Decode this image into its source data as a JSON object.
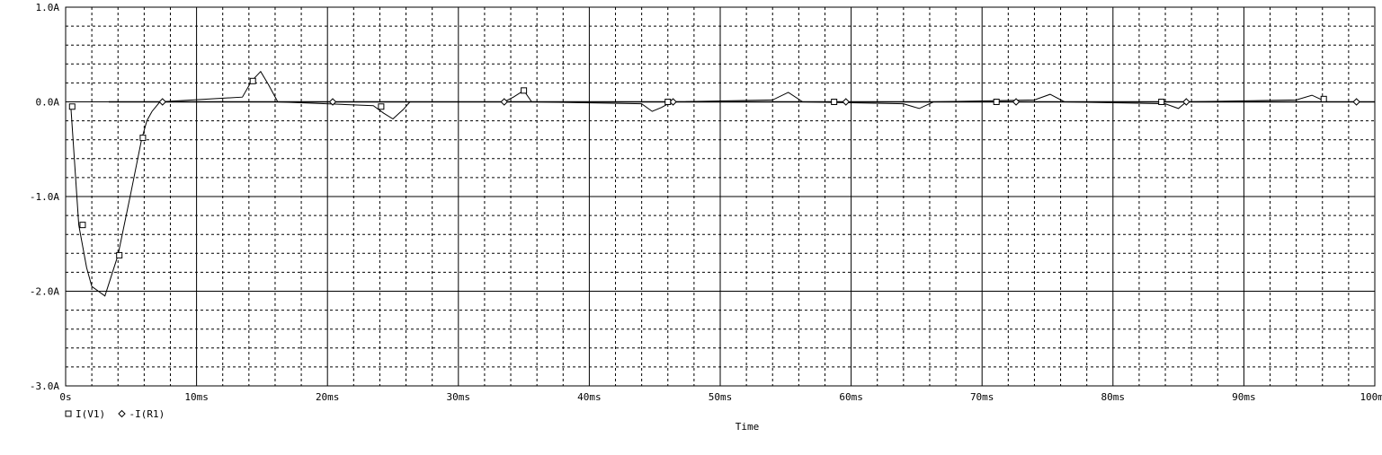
{
  "chart_data": {
    "type": "line",
    "title": "",
    "xlabel": "Time",
    "ylabel": "",
    "xlim": [
      0,
      100
    ],
    "ylim": [
      -3.0,
      1.0
    ],
    "x_ticks": [
      0,
      10,
      20,
      30,
      40,
      50,
      60,
      70,
      80,
      90,
      100
    ],
    "x_tick_labels": [
      "0s",
      "10ms",
      "20ms",
      "30ms",
      "40ms",
      "50ms",
      "60ms",
      "70ms",
      "80ms",
      "90ms",
      "100ms"
    ],
    "y_ticks": [
      1.0,
      0.0,
      -1.0,
      -2.0,
      -3.0
    ],
    "y_tick_labels": [
      "1.0A",
      "0.0A",
      "-1.0A",
      "-2.0A",
      "-3.0A"
    ],
    "grid": true,
    "legend_position": "bottom-left",
    "colors": {
      "trace": "#000000",
      "grid": "#000000",
      "background": "#ffffff"
    },
    "series": [
      {
        "name": "I(V1)",
        "marker": "square",
        "x": [
          0.4,
          1.0,
          1.6,
          2.0,
          3.0,
          4.0,
          5.0,
          5.8,
          6.2,
          6.6,
          7.2,
          13.5,
          14.2,
          14.9,
          15.5,
          16.2,
          23.5,
          24.3,
          25.0,
          25.8,
          26.3,
          33.5,
          34.2,
          35.0,
          35.6,
          44.0,
          44.8,
          45.5,
          46.3,
          54.0,
          55.2,
          56.3,
          64.0,
          65.2,
          66.3,
          74.0,
          75.2,
          76.3,
          84.0,
          85.0,
          85.6,
          94.0,
          95.2,
          96.3
        ],
        "y": [
          -0.05,
          -1.3,
          -1.75,
          -1.95,
          -2.05,
          -1.62,
          -0.95,
          -0.4,
          -0.2,
          -0.1,
          0.0,
          0.05,
          0.22,
          0.32,
          0.18,
          0.0,
          -0.04,
          -0.12,
          -0.18,
          -0.08,
          0.0,
          0.0,
          0.05,
          0.12,
          0.0,
          -0.02,
          -0.1,
          -0.06,
          0.0,
          0.02,
          0.1,
          0.0,
          -0.02,
          -0.07,
          0.0,
          0.02,
          0.08,
          0.0,
          -0.02,
          -0.07,
          0.0,
          0.02,
          0.07,
          0.0
        ],
        "marker_x": [
          0.5,
          1.3,
          4.1,
          5.9,
          14.3,
          24.1,
          35.0,
          46.0,
          58.7,
          71.1,
          83.7,
          96.1
        ],
        "marker_y": [
          -0.05,
          -1.3,
          -1.62,
          -0.38,
          0.22,
          -0.05,
          0.12,
          0.0,
          0.0,
          0.0,
          0.0,
          0.03
        ]
      },
      {
        "name": "-I(R1)",
        "marker": "diamond",
        "x": [
          3.3,
          100
        ],
        "y": [
          0.0,
          0.0
        ],
        "marker_x": [
          7.4,
          20.4,
          33.5,
          46.4,
          59.6,
          72.6,
          85.6,
          98.6
        ],
        "marker_y": [
          0.0,
          0.0,
          0.0,
          0.0,
          0.0,
          0.0,
          0.0,
          0.0
        ]
      }
    ]
  }
}
